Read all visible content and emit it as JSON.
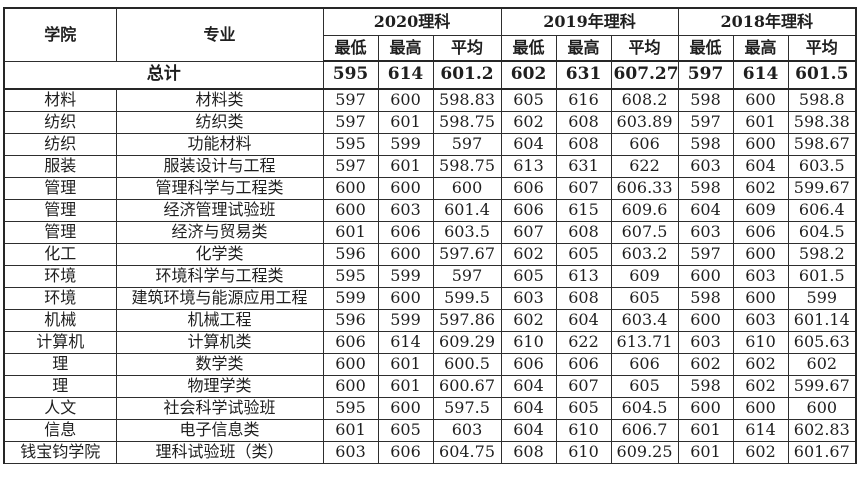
{
  "chart_data": {
    "type": "table",
    "header": {
      "college": "学院",
      "major": "专业",
      "groups": [
        {
          "label": "2020理科"
        },
        {
          "label": "2019年理科"
        },
        {
          "label": "2018年理科"
        }
      ],
      "subcols": [
        "最低",
        "最高",
        "平均"
      ]
    },
    "total_row": {
      "label": "总计",
      "values": [
        "595",
        "614",
        "601.2",
        "602",
        "631",
        "607.27",
        "597",
        "614",
        "601.5"
      ]
    },
    "rows": [
      {
        "college": "材料",
        "major": "材料类",
        "scores": [
          "597",
          "600",
          "598.83",
          "605",
          "616",
          "608.2",
          "598",
          "600",
          "598.8"
        ]
      },
      {
        "college": "纺织",
        "major": "纺织类",
        "scores": [
          "597",
          "601",
          "598.75",
          "602",
          "608",
          "603.89",
          "597",
          "601",
          "598.38"
        ]
      },
      {
        "college": "纺织",
        "major": "功能材料",
        "scores": [
          "595",
          "599",
          "597",
          "604",
          "608",
          "606",
          "598",
          "600",
          "598.67"
        ]
      },
      {
        "college": "服装",
        "major": "服装设计与工程",
        "scores": [
          "597",
          "601",
          "598.75",
          "613",
          "631",
          "622",
          "603",
          "604",
          "603.5"
        ]
      },
      {
        "college": "管理",
        "major": "管理科学与工程类",
        "scores": [
          "600",
          "600",
          "600",
          "606",
          "607",
          "606.33",
          "598",
          "602",
          "599.67"
        ]
      },
      {
        "college": "管理",
        "major": "经济管理试验班",
        "scores": [
          "600",
          "603",
          "601.4",
          "606",
          "615",
          "609.6",
          "604",
          "609",
          "606.4"
        ]
      },
      {
        "college": "管理",
        "major": "经济与贸易类",
        "scores": [
          "601",
          "606",
          "603.5",
          "607",
          "608",
          "607.5",
          "603",
          "606",
          "604.5"
        ]
      },
      {
        "college": "化工",
        "major": "化学类",
        "scores": [
          "596",
          "600",
          "597.67",
          "602",
          "605",
          "603.2",
          "597",
          "600",
          "598.2"
        ]
      },
      {
        "college": "环境",
        "major": "环境科学与工程类",
        "scores": [
          "595",
          "599",
          "597",
          "605",
          "613",
          "609",
          "600",
          "603",
          "601.5"
        ]
      },
      {
        "college": "环境",
        "major": "建筑环境与能源应用工程",
        "scores": [
          "599",
          "600",
          "599.5",
          "603",
          "608",
          "605",
          "598",
          "600",
          "599"
        ]
      },
      {
        "college": "机械",
        "major": "机械工程",
        "scores": [
          "596",
          "599",
          "597.86",
          "602",
          "604",
          "603.4",
          "600",
          "603",
          "601.14"
        ]
      },
      {
        "college": "计算机",
        "major": "计算机类",
        "scores": [
          "606",
          "614",
          "609.29",
          "610",
          "622",
          "613.71",
          "603",
          "610",
          "605.63"
        ]
      },
      {
        "college": "理",
        "major": "数学类",
        "scores": [
          "600",
          "601",
          "600.5",
          "606",
          "606",
          "606",
          "602",
          "602",
          "602"
        ]
      },
      {
        "college": "理",
        "major": "物理学类",
        "scores": [
          "600",
          "601",
          "600.67",
          "604",
          "607",
          "605",
          "598",
          "602",
          "599.67"
        ]
      },
      {
        "college": "人文",
        "major": "社会科学试验班",
        "scores": [
          "595",
          "600",
          "597.5",
          "604",
          "605",
          "604.5",
          "600",
          "600",
          "600"
        ]
      },
      {
        "college": "信息",
        "major": "电子信息类",
        "scores": [
          "601",
          "605",
          "603",
          "604",
          "610",
          "606.7",
          "601",
          "614",
          "602.83"
        ]
      },
      {
        "college": "钱宝钧学院",
        "major": "理科试验班（类）",
        "scores": [
          "603",
          "606",
          "604.75",
          "608",
          "610",
          "609.25",
          "601",
          "602",
          "601.67"
        ]
      }
    ],
    "colors": {
      "border": "#2e2e2e",
      "text": "#1f1f1f",
      "background": "#ffffff"
    }
  }
}
